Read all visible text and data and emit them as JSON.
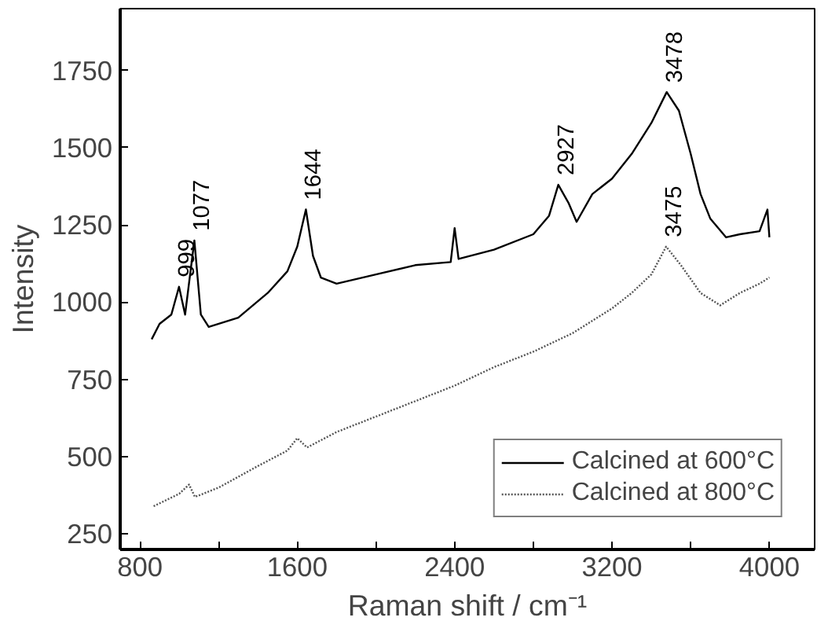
{
  "chart_data": {
    "type": "line",
    "xlabel": "Raman shift / cm⁻¹",
    "ylabel": "Intensity",
    "xlim": [
      700,
      4230
    ],
    "ylim": [
      200,
      1950
    ],
    "xticks": [
      800,
      {
        "value": 1200,
        "label": null
      },
      1600,
      {
        "value": 2000,
        "label": null
      },
      2400,
      {
        "value": 2800,
        "label": null
      },
      3200,
      {
        "value": 3600,
        "label": null
      },
      4000
    ],
    "yticks": [
      250,
      500,
      750,
      1000,
      1250,
      1500,
      1750
    ],
    "grid": false,
    "legend": "bottom right",
    "marker": "none",
    "series": [
      {
        "name": "Calcined at 600°C",
        "color": "#000000",
        "line_style": "solid",
        "x": [
          860,
          900,
          960,
          999,
          1030,
          1077,
          1110,
          1150,
          1300,
          1450,
          1550,
          1600,
          1644,
          1680,
          1720,
          1800,
          2000,
          2200,
          2380,
          2400,
          2420,
          2600,
          2800,
          2880,
          2927,
          2980,
          3020,
          3100,
          3200,
          3300,
          3400,
          3478,
          3540,
          3600,
          3650,
          3700,
          3780,
          3850,
          3950,
          3990,
          4000
        ],
        "values": [
          880,
          930,
          960,
          1050,
          960,
          1200,
          960,
          920,
          950,
          1030,
          1100,
          1180,
          1300,
          1150,
          1080,
          1060,
          1090,
          1120,
          1130,
          1240,
          1140,
          1170,
          1220,
          1280,
          1380,
          1320,
          1260,
          1350,
          1400,
          1480,
          1580,
          1680,
          1620,
          1480,
          1350,
          1270,
          1210,
          1220,
          1230,
          1300,
          1210
        ]
      },
      {
        "name": "Calcined at 800°C",
        "color": "#555555",
        "line_style": "dotted",
        "x": [
          870,
          1000,
          1050,
          1080,
          1200,
          1400,
          1550,
          1600,
          1650,
          1800,
          2000,
          2200,
          2400,
          2600,
          2800,
          3000,
          3200,
          3300,
          3400,
          3475,
          3550,
          3650,
          3750,
          3850,
          3950,
          4000
        ],
        "values": [
          340,
          380,
          410,
          370,
          400,
          470,
          520,
          560,
          530,
          580,
          630,
          680,
          730,
          790,
          840,
          900,
          980,
          1030,
          1090,
          1180,
          1120,
          1030,
          990,
          1030,
          1060,
          1080
        ]
      }
    ],
    "annotations": [
      {
        "text": "999",
        "x": 999,
        "y": 1050
      },
      {
        "text": "1077",
        "x": 1077,
        "y": 1200
      },
      {
        "text": "1644",
        "x": 1644,
        "y": 1300
      },
      {
        "text": "2927",
        "x": 2927,
        "y": 1380
      },
      {
        "text": "3478",
        "x": 3478,
        "y": 1680
      },
      {
        "text": "3475",
        "x": 3475,
        "y": 1180
      }
    ]
  }
}
